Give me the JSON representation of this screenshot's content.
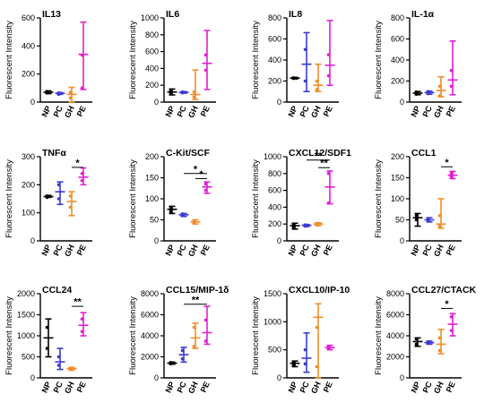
{
  "figure": {
    "categories": [
      "NP",
      "PC",
      "GH",
      "PE"
    ],
    "colors": [
      "#000000",
      "#3a3ad6",
      "#f28c28",
      "#e31ed2"
    ]
  },
  "chart_data": [
    {
      "type": "scatter",
      "title": "IL13",
      "ylabel": "Fluorescent Intensity",
      "ylim": [
        0,
        600
      ],
      "ticks": [
        0,
        200,
        400,
        600
      ],
      "ticklabels": [
        "0",
        "200",
        "400",
        "600"
      ],
      "series": [
        {
          "values": [
            65,
            55,
            30,
            335
          ]
        },
        {
          "values": [
            75,
            65,
            70,
            100
          ]
        }
      ],
      "mean": [
        70,
        62,
        55,
        340
      ],
      "low": [
        60,
        55,
        0,
        90
      ],
      "high": [
        80,
        68,
        105,
        570
      ],
      "significance": []
    },
    {
      "type": "scatter",
      "title": "IL6",
      "ylabel": "Fluorescent Intensity",
      "ylim": [
        0,
        1000
      ],
      "ticks": [
        0,
        200,
        400,
        600,
        800,
        1000
      ],
      "ticklabels": [
        "0",
        "200",
        "400",
        "600",
        "800",
        "1000"
      ],
      "series": [
        {
          "values": [
            100,
            110,
            60,
            380
          ]
        },
        {
          "values": [
            140,
            120,
            120,
            560
          ]
        }
      ],
      "mean": [
        120,
        115,
        90,
        460
      ],
      "low": [
        85,
        105,
        30,
        150
      ],
      "high": [
        155,
        125,
        380,
        850
      ],
      "significance": []
    },
    {
      "type": "scatter",
      "title": "IL8",
      "ylabel": "Fluorescent Intensity",
      "ylim": [
        0,
        800
      ],
      "ticks": [
        0,
        200,
        400,
        600,
        800
      ],
      "ticklabels": [
        "0",
        "200",
        "400",
        "600",
        "800"
      ],
      "series": [
        {
          "values": [
            225,
            200,
            120,
            250
          ]
        },
        {
          "values": [
            230,
            500,
            200,
            450
          ]
        }
      ],
      "mean": [
        228,
        360,
        160,
        350
      ],
      "low": [
        220,
        100,
        100,
        160
      ],
      "high": [
        235,
        660,
        360,
        775
      ],
      "significance": []
    },
    {
      "type": "scatter",
      "title": "IL-1α",
      "ylabel": "Fluorescent Intensity",
      "ylim": [
        0,
        800
      ],
      "ticks": [
        0,
        200,
        400,
        600,
        800
      ],
      "ticklabels": [
        "0",
        "200",
        "400",
        "600",
        "800"
      ],
      "series": [
        {
          "values": [
            75,
            80,
            60,
            150
          ]
        },
        {
          "values": [
            95,
            100,
            150,
            300
          ]
        }
      ],
      "mean": [
        85,
        90,
        110,
        210
      ],
      "low": [
        70,
        75,
        50,
        70
      ],
      "high": [
        100,
        105,
        240,
        580
      ],
      "significance": []
    },
    {
      "type": "scatter",
      "title": "TNFα",
      "ylabel": "Fluorescent Intensity",
      "ylim": [
        0,
        300
      ],
      "ticks": [
        0,
        100,
        200,
        300
      ],
      "ticklabels": [
        "0",
        "100",
        "200",
        "300"
      ],
      "series": [
        {
          "values": [
            155,
            150,
            120,
            215
          ]
        },
        {
          "values": [
            160,
            200,
            160,
            240
          ]
        }
      ],
      "mean": [
        158,
        175,
        140,
        227
      ],
      "low": [
        155,
        130,
        90,
        200
      ],
      "high": [
        162,
        210,
        175,
        260
      ],
      "significance": [
        {
          "from": 2,
          "to": 3,
          "label": "*",
          "y": 262
        }
      ]
    },
    {
      "type": "scatter",
      "title": "C-Kit/SCF",
      "ylabel": "Fluorescent Intensity",
      "ylim": [
        0,
        200
      ],
      "ticks": [
        0,
        50,
        100,
        150,
        200
      ],
      "ticklabels": [
        "0",
        "50",
        "100",
        "150",
        "200"
      ],
      "series": [
        {
          "values": [
            70,
            60,
            42,
            120
          ]
        },
        {
          "values": [
            80,
            64,
            48,
            135
          ]
        }
      ],
      "mean": [
        75,
        62,
        45,
        128
      ],
      "low": [
        65,
        58,
        40,
        113
      ],
      "high": [
        82,
        65,
        50,
        140
      ],
      "significance": [
        {
          "from": 2,
          "to": 3,
          "label": "*",
          "y": 148
        },
        {
          "from": 1,
          "to": 3,
          "label": "*",
          "y": 160
        }
      ]
    },
    {
      "type": "scatter",
      "title": "CXCL12/SDF1",
      "ylabel": "Fluorescent Intensity",
      "ylim": [
        0,
        1000
      ],
      "ticks": [
        0,
        200,
        400,
        600,
        800,
        1000
      ],
      "ticklabels": [
        "0",
        "200",
        "400",
        "600",
        "800",
        "1000"
      ],
      "series": [
        {
          "values": [
            160,
            175,
            190,
            450
          ]
        },
        {
          "values": [
            195,
            190,
            210,
            800
          ]
        }
      ],
      "mean": [
        180,
        185,
        200,
        640
      ],
      "low": [
        140,
        170,
        180,
        440
      ],
      "high": [
        210,
        195,
        215,
        830
      ],
      "significance": [
        {
          "from": 2,
          "to": 3,
          "label": "**",
          "y": 870
        },
        {
          "from": 1,
          "to": 3,
          "label": "**",
          "y": 960
        }
      ]
    },
    {
      "type": "scatter",
      "title": "CCL1",
      "ylabel": "Fluorescent Intensity",
      "ylim": [
        0,
        200
      ],
      "ticks": [
        0,
        50,
        100,
        150,
        200
      ],
      "ticklabels": [
        "0",
        "50",
        "100",
        "150",
        "200"
      ],
      "series": [
        {
          "values": [
            50,
            48,
            35,
            152
          ]
        },
        {
          "values": [
            60,
            52,
            60,
            160
          ]
        }
      ],
      "mean": [
        55,
        50,
        40,
        156
      ],
      "low": [
        35,
        45,
        30,
        148
      ],
      "high": [
        65,
        55,
        100,
        165
      ],
      "significance": [
        {
          "from": 2,
          "to": 3,
          "label": "*",
          "y": 176
        }
      ]
    },
    {
      "type": "scatter",
      "title": "CCL24",
      "ylabel": "Fluorescent Intensity",
      "ylim": [
        0,
        2000
      ],
      "ticks": [
        0,
        500,
        1000,
        1500,
        2000
      ],
      "ticklabels": [
        "0",
        "500",
        "1000",
        "1500",
        "2000"
      ],
      "series": [
        {
          "values": [
            700,
            300,
            210,
            1100
          ]
        },
        {
          "values": [
            1200,
            500,
            230,
            1400
          ]
        }
      ],
      "mean": [
        950,
        380,
        220,
        1250
      ],
      "low": [
        500,
        200,
        180,
        1000
      ],
      "high": [
        1400,
        700,
        250,
        1550
      ],
      "significance": [
        {
          "from": 2,
          "to": 3,
          "label": "**",
          "y": 1700
        }
      ]
    },
    {
      "type": "scatter",
      "title": "CCL15/MIP-1δ",
      "ylabel": "Fluorescent Intensity",
      "ylim": [
        0,
        8000
      ],
      "ticks": [
        0,
        2000,
        4000,
        6000,
        8000
      ],
      "ticklabels": [
        "0",
        "2000",
        "4000",
        "6000",
        "8000"
      ],
      "series": [
        {
          "values": [
            1350,
            1800,
            3000,
            3500
          ]
        },
        {
          "values": [
            1450,
            2600,
            4800,
            5500
          ]
        }
      ],
      "mean": [
        1400,
        2200,
        3800,
        4300
      ],
      "low": [
        1300,
        1500,
        2800,
        3200
      ],
      "high": [
        1500,
        2900,
        5200,
        6800
      ],
      "significance": [
        {
          "from": 1,
          "to": 3,
          "label": "**",
          "y": 7000
        }
      ]
    },
    {
      "type": "scatter",
      "title": "CXCL10/IP-10",
      "ylabel": "Fluorescent Intensity",
      "ylim": [
        0,
        1500
      ],
      "ticks": [
        0,
        500,
        1000,
        1500
      ],
      "ticklabels": [
        "0",
        "500",
        "1000",
        "1500"
      ],
      "series": [
        {
          "values": [
            230,
            250,
            200,
            520
          ]
        },
        {
          "values": [
            280,
            500,
            900,
            560
          ]
        }
      ],
      "mean": [
        260,
        350,
        1080,
        540
      ],
      "low": [
        200,
        100,
        0,
        500
      ],
      "high": [
        300,
        800,
        1320,
        580
      ],
      "significance": []
    },
    {
      "type": "scatter",
      "title": "CCL27/CTACK",
      "ylabel": "Fluorescent Intensity",
      "ylim": [
        0,
        8000
      ],
      "ticks": [
        0,
        2000,
        4000,
        6000,
        8000
      ],
      "ticklabels": [
        "0",
        "2000",
        "4000",
        "6000",
        "8000"
      ],
      "series": [
        {
          "values": [
            3200,
            3300,
            2600,
            4500
          ]
        },
        {
          "values": [
            3700,
            3400,
            3800,
            5800
          ]
        }
      ],
      "mean": [
        3450,
        3350,
        3200,
        5100
      ],
      "low": [
        3000,
        3200,
        2300,
        4000
      ],
      "high": [
        3800,
        3500,
        4600,
        6100
      ],
      "significance": [
        {
          "from": 2,
          "to": 3,
          "label": "*",
          "y": 6600
        }
      ]
    }
  ]
}
